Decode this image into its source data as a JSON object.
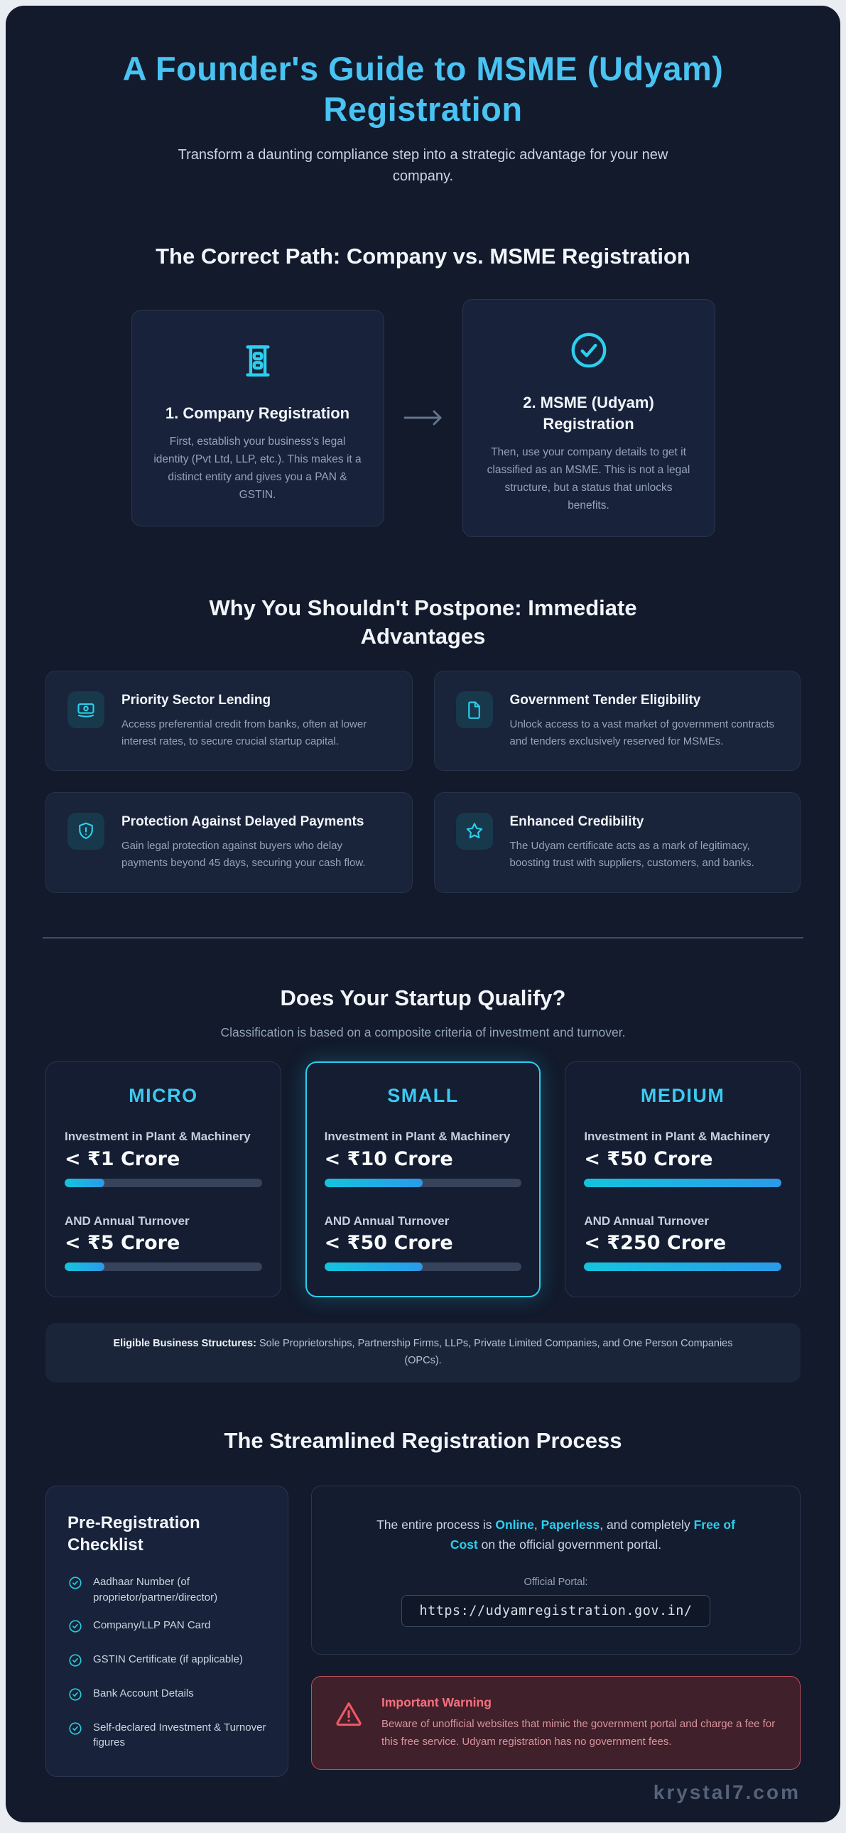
{
  "header": {
    "title": "A Founder's Guide to MSME (Udyam) Registration",
    "subtitle": "Transform a daunting compliance step into a strategic advantage for your new company."
  },
  "path_section": {
    "heading": "The Correct Path: Company vs. MSME Registration",
    "steps": [
      {
        "icon": "building-icon",
        "title": "1. Company Registration",
        "description": "First, establish your business's legal identity (Pvt Ltd, LLP, etc.). This makes it a distinct entity and gives you a PAN & GSTIN."
      },
      {
        "icon": "check-circle-icon",
        "title": "2. MSME (Udyam) Registration",
        "description": "Then, use your company details to get it classified as an MSME. This is not a legal structure, but a status that unlocks benefits."
      }
    ]
  },
  "advantages_section": {
    "heading": "Why You Shouldn't Postpone: Immediate Advantages",
    "cards": [
      {
        "icon": "banknote-icon",
        "title": "Priority Sector Lending",
        "description": "Access preferential credit from banks, often at lower interest rates, to secure crucial startup capital."
      },
      {
        "icon": "document-icon",
        "title": "Government Tender Eligibility",
        "description": "Unlock access to a vast market of government contracts and tenders exclusively reserved for MSMEs."
      },
      {
        "icon": "shield-alert-icon",
        "title": "Protection Against Delayed Payments",
        "description": "Gain legal protection against buyers who delay payments beyond 45 days, securing your cash flow."
      },
      {
        "icon": "star-icon",
        "title": "Enhanced Credibility",
        "description": "The Udyam certificate acts as a mark of legitimacy, boosting trust with suppliers, customers, and banks."
      }
    ]
  },
  "qualify_section": {
    "heading": "Does Your Startup Qualify?",
    "subheading": "Classification is based on a composite criteria of investment and turnover.",
    "tiers": [
      {
        "name": "MICRO",
        "investment_label": "Investment in Plant & Machinery",
        "investment_value": "< ₹1 Crore",
        "investment_pct": 20,
        "turnover_label": "AND Annual Turnover",
        "turnover_value": "< ₹5 Crore",
        "turnover_pct": 20
      },
      {
        "name": "SMALL",
        "investment_label": "Investment in Plant & Machinery",
        "investment_value": "< ₹10 Crore",
        "investment_pct": 50,
        "turnover_label": "AND Annual Turnover",
        "turnover_value": "< ₹50 Crore",
        "turnover_pct": 50
      },
      {
        "name": "MEDIUM",
        "investment_label": "Investment in Plant & Machinery",
        "investment_value": "< ₹50 Crore",
        "investment_pct": 100,
        "turnover_label": "AND Annual Turnover",
        "turnover_value": "< ₹250 Crore",
        "turnover_pct": 100
      }
    ],
    "eligible_label": "Eligible Business Structures:",
    "eligible_text": " Sole Proprietorships, Partnership Firms, LLPs, Private Limited Companies, and One Person Companies (OPCs)."
  },
  "process_section": {
    "heading": "The Streamlined Registration Process",
    "checklist": {
      "title": "Pre-Registration Checklist",
      "items": [
        "Aadhaar Number (of proprietor/partner/director)",
        "Company/LLP PAN Card",
        "GSTIN Certificate (if applicable)",
        "Bank Account Details",
        "Self-declared Investment & Turnover figures"
      ]
    },
    "portal_note": {
      "part1": "The entire process is ",
      "online": "Online",
      "sep1": ", ",
      "paperless": "Paperless",
      "part2": ", and completely ",
      "free": "Free of Cost",
      "part3": " on the official government portal."
    },
    "portal_label": "Official Portal:",
    "portal_url": "https://udyamregistration.gov.in/",
    "warning": {
      "title": "Important Warning",
      "text": "Beware of unofficial websites that mimic the government portal and charge a fee for this free service. Udyam registration has no government fees."
    }
  },
  "footer": {
    "watermark": "krystal7.com"
  },
  "colors": {
    "accent_cyan": "#2ccfee",
    "title_sky": "#49c3f2",
    "warning_red": "#f8717f",
    "background": "#121a2c"
  }
}
